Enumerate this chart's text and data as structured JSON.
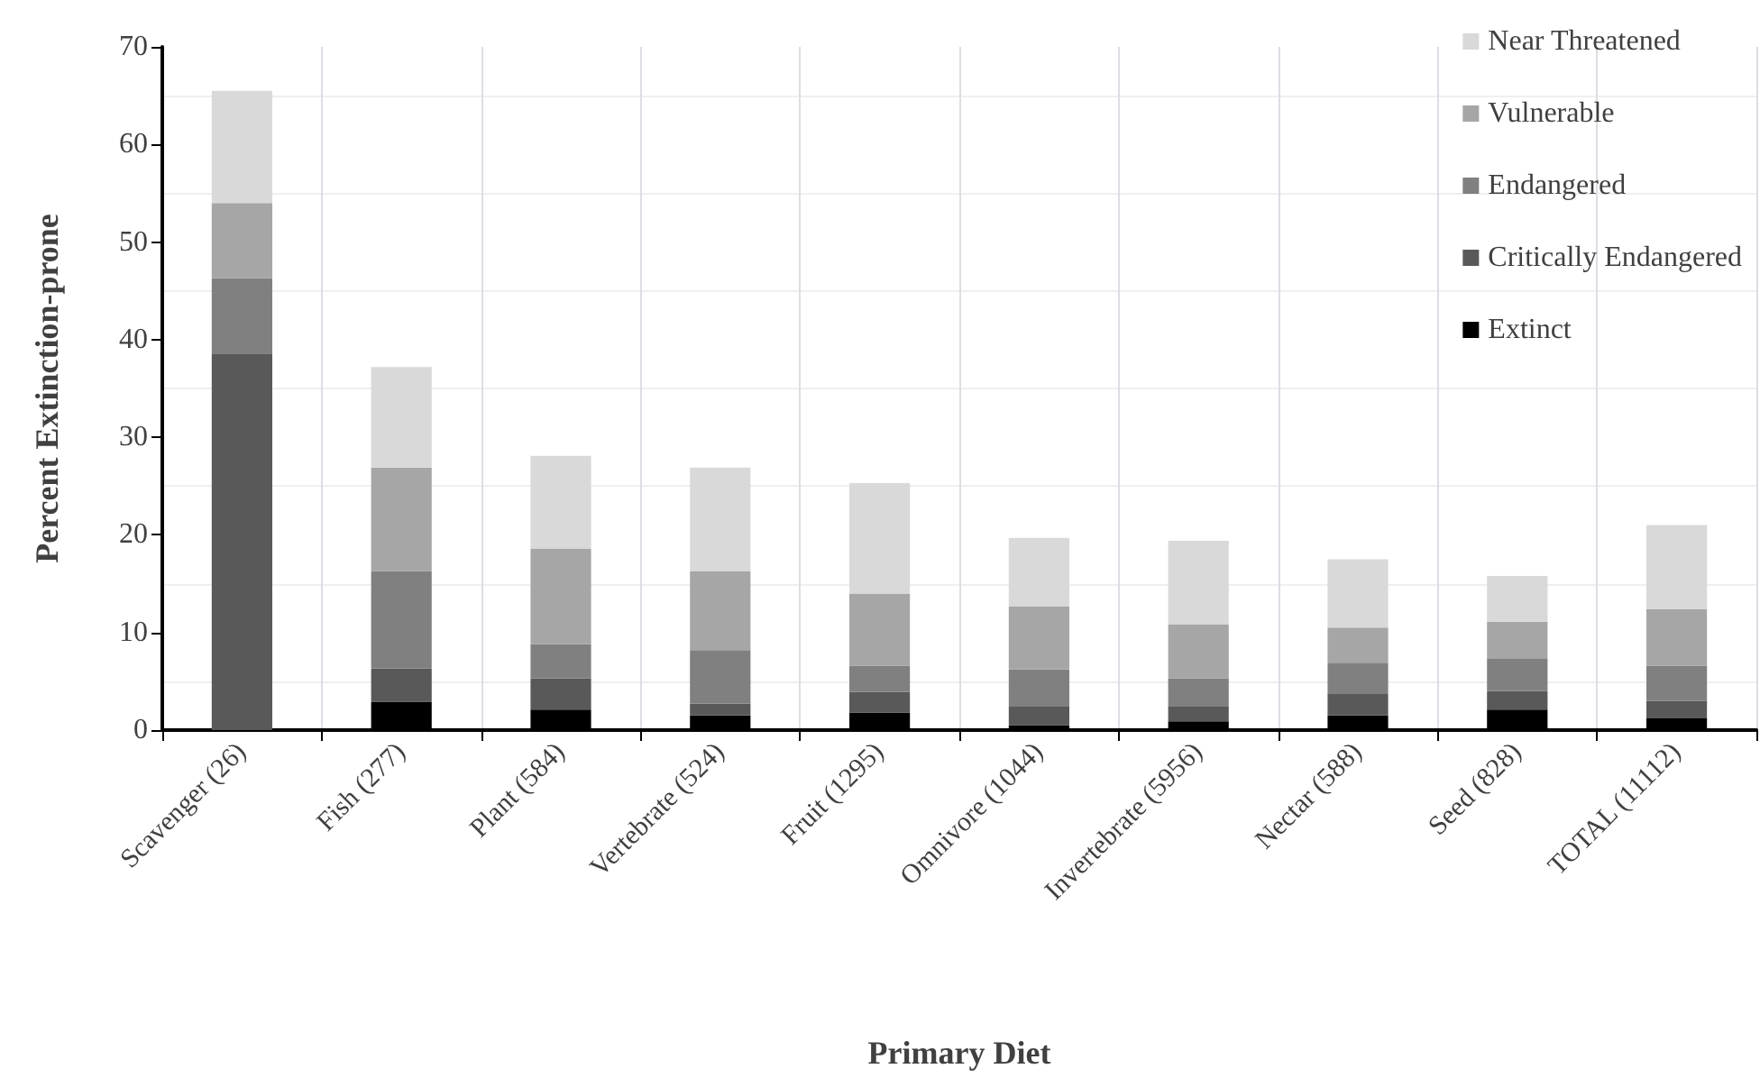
{
  "chart_data": {
    "type": "bar",
    "stacked": true,
    "xlabel": "Primary Diet",
    "ylabel": "Percent Extinction-prone",
    "categories": [
      "Scavenger (26)",
      "Fish (277)",
      "Plant (584)",
      "Vertebrate (524)",
      "Fruit (1295)",
      "Omnivore (1044)",
      "Invertebrate (5956)",
      "Nectar (588)",
      "Seed (828)",
      "TOTAL (11112)"
    ],
    "series": [
      {
        "name": "Extinct",
        "color": "#000000",
        "values": [
          0,
          2.9,
          2.1,
          1.5,
          1.8,
          0.5,
          0.9,
          1.5,
          2.1,
          1.2
        ]
      },
      {
        "name": "Critically Endangered",
        "color": "#595959",
        "values": [
          38.5,
          3.4,
          3.2,
          1.2,
          2.1,
          1.9,
          1.5,
          2.2,
          1.9,
          1.8
        ]
      },
      {
        "name": "Endangered",
        "color": "#808080",
        "values": [
          7.8,
          10.0,
          3.5,
          5.5,
          2.7,
          3.8,
          2.9,
          3.2,
          3.3,
          3.6
        ]
      },
      {
        "name": "Vulnerable",
        "color": "#a6a6a6",
        "values": [
          7.7,
          10.6,
          9.8,
          8.1,
          7.4,
          6.5,
          5.5,
          3.6,
          3.8,
          5.8
        ]
      },
      {
        "name": "Near Threatened",
        "color": "#d9d9d9",
        "values": [
          11.5,
          10.3,
          9.5,
          10.6,
          11.3,
          7.0,
          8.6,
          7.0,
          4.7,
          8.6
        ]
      }
    ],
    "ylim": [
      0,
      70
    ],
    "yticks": [
      0,
      10,
      20,
      30,
      40,
      50,
      60,
      70
    ],
    "grid": true,
    "legend": "top right"
  }
}
